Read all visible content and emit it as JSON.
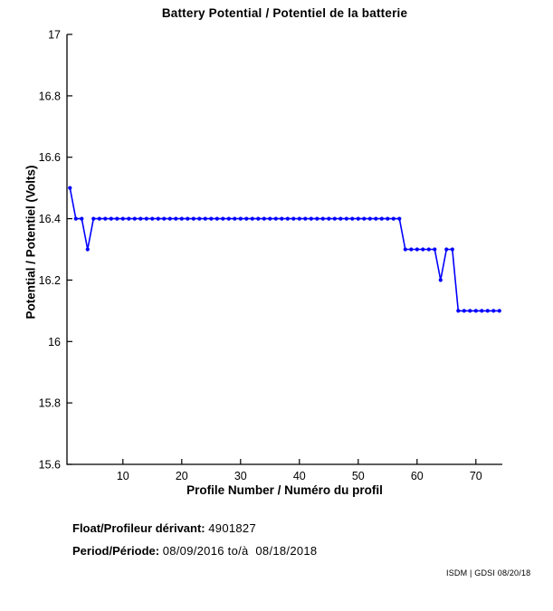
{
  "chart_data": {
    "type": "line",
    "title": "Battery Potential / Potentiel de la batterie",
    "xlabel": "Profile Number / Numéro du profil",
    "ylabel": "Potential / Potentiel (Volts)",
    "grid": false,
    "legend": "none",
    "line_color": "#0000FF",
    "marker": "dot",
    "xlim": [
      0.5,
      74.5
    ],
    "ylim": [
      15.6,
      17
    ],
    "xticks": [
      10,
      20,
      30,
      40,
      50,
      60,
      70
    ],
    "yticks": [
      15.6,
      15.8,
      16,
      16.2,
      16.4,
      16.6,
      16.8,
      17
    ],
    "x": [
      1,
      2,
      3,
      4,
      5,
      6,
      7,
      8,
      9,
      10,
      11,
      12,
      13,
      14,
      15,
      16,
      17,
      18,
      19,
      20,
      21,
      22,
      23,
      24,
      25,
      26,
      27,
      28,
      29,
      30,
      31,
      32,
      33,
      34,
      35,
      36,
      37,
      38,
      39,
      40,
      41,
      42,
      43,
      44,
      45,
      46,
      47,
      48,
      49,
      50,
      51,
      52,
      53,
      54,
      55,
      56,
      57,
      58,
      59,
      60,
      61,
      62,
      63,
      64,
      65,
      66,
      67,
      68,
      69,
      70,
      71,
      72,
      73,
      74
    ],
    "y": [
      16.5,
      16.4,
      16.4,
      16.3,
      16.4,
      16.4,
      16.4,
      16.4,
      16.4,
      16.4,
      16.4,
      16.4,
      16.4,
      16.4,
      16.4,
      16.4,
      16.4,
      16.4,
      16.4,
      16.4,
      16.4,
      16.4,
      16.4,
      16.4,
      16.4,
      16.4,
      16.4,
      16.4,
      16.4,
      16.4,
      16.4,
      16.4,
      16.4,
      16.4,
      16.4,
      16.4,
      16.4,
      16.4,
      16.4,
      16.4,
      16.4,
      16.4,
      16.4,
      16.4,
      16.4,
      16.4,
      16.4,
      16.4,
      16.4,
      16.4,
      16.4,
      16.4,
      16.4,
      16.4,
      16.4,
      16.4,
      16.4,
      16.3,
      16.3,
      16.3,
      16.3,
      16.3,
      16.3,
      16.2,
      16.3,
      16.3,
      16.1,
      16.1,
      16.1,
      16.1,
      16.1,
      16.1,
      16.1,
      16.1
    ]
  },
  "footer": {
    "float_label": "Float/Profileur dérivant:",
    "float_value": "4901827",
    "period_label": "Period/Période:",
    "period_value": "08/09/2016 to/à  08/18/2018",
    "credit": "ISDM | GDSI 08/20/18"
  }
}
